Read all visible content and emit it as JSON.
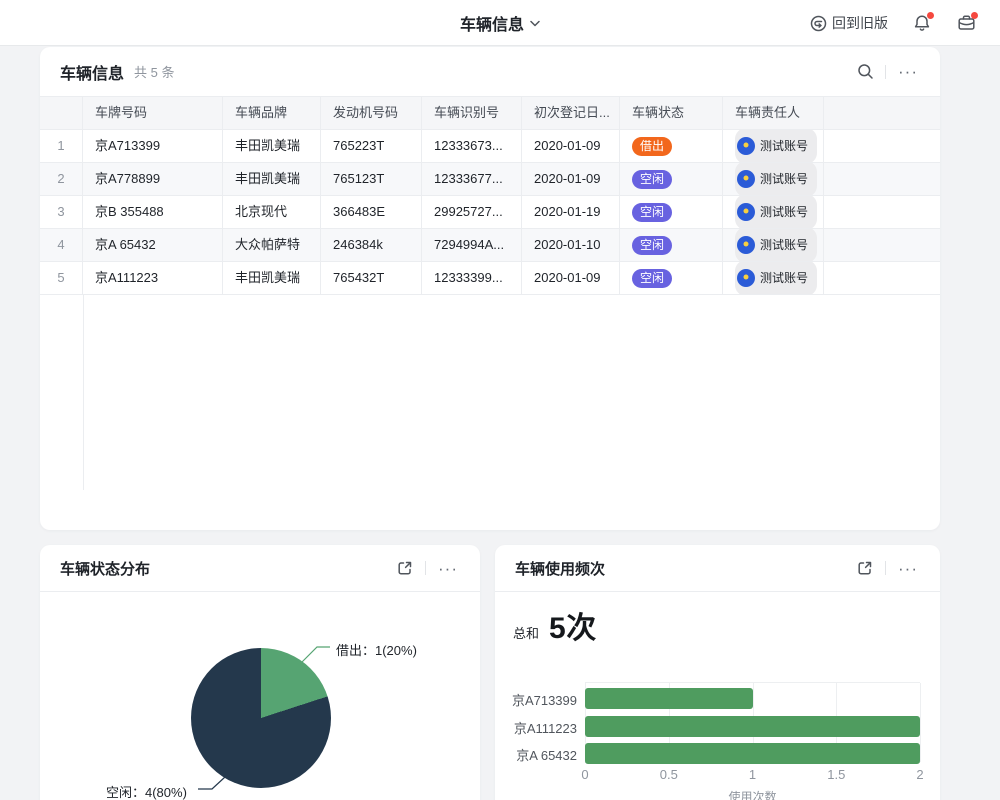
{
  "topbar": {
    "title": "车辆信息",
    "back_label": "回到旧版"
  },
  "icons": {
    "more": "···",
    "back": "circular-return-arrow",
    "notification": "bell",
    "workbench": "briefcase",
    "search": "magnifier",
    "export": "open-in-new-window",
    "title_chevron": "chevron-down"
  },
  "table_card": {
    "title": "车辆信息",
    "count": "共 5 条",
    "columns": [
      "车牌号码",
      "车辆品牌",
      "发动机号码",
      "车辆识别号",
      "初次登记日...",
      "车辆状态",
      "车辆责任人"
    ],
    "rows": [
      {
        "num": "1",
        "plate": "京A713399",
        "brand": "丰田凯美瑞",
        "engine": "765223T",
        "vin": "12333673...",
        "reg_date": "2020-01-09",
        "status": "借出",
        "owner": "测试账号"
      },
      {
        "num": "2",
        "plate": "京A778899",
        "brand": "丰田凯美瑞",
        "engine": "765123T",
        "vin": "12333677...",
        "reg_date": "2020-01-09",
        "status": "空闲",
        "owner": "测试账号"
      },
      {
        "num": "3",
        "plate": "京B 355488",
        "brand": "北京现代",
        "engine": "366483E",
        "vin": "29925727...",
        "reg_date": "2020-01-19",
        "status": "空闲",
        "owner": "测试账号"
      },
      {
        "num": "4",
        "plate": "京A 65432",
        "brand": "大众帕萨特",
        "engine": "246384k",
        "vin": "7294994A...",
        "reg_date": "2020-01-10",
        "status": "空闲",
        "owner": "测试账号"
      },
      {
        "num": "5",
        "plate": "京A111223",
        "brand": "丰田凯美瑞",
        "engine": "765432T",
        "vin": "12333399...",
        "reg_date": "2020-01-09",
        "status": "空闲",
        "owner": "测试账号"
      }
    ]
  },
  "status_colors": {
    "借出": "#f2671c",
    "空闲": "#6862e0"
  },
  "pie_card": {
    "title": "车辆状态分布",
    "label_lent": "借出：1(20%)",
    "label_idle": "空闲：4(80%)"
  },
  "bar_card": {
    "title": "车辆使用频次",
    "total_label": "总和",
    "total_value": "5次",
    "ticks": [
      "0",
      "0.5",
      "1",
      "1.5",
      "2"
    ],
    "xlabel": "使用次数"
  },
  "chart_data": [
    {
      "type": "pie",
      "title": "车辆状态分布",
      "slices": [
        {
          "label": "借出",
          "value": 1,
          "pct": 20,
          "color": "#56a472"
        },
        {
          "label": "空闲",
          "value": 4,
          "pct": 80,
          "color": "#24384c"
        }
      ],
      "annotations": [
        "借出：1(20%)",
        "空闲：4(80%)"
      ],
      "legend_position": "none"
    },
    {
      "type": "bar",
      "orientation": "horizontal",
      "title": "车辆使用频次",
      "total": 5,
      "total_text": "5次",
      "categories": [
        "京A713399",
        "京A111223",
        "京A 65432"
      ],
      "values": [
        1,
        2,
        2
      ],
      "xlabel": "使用次数",
      "ylabel": "",
      "xlim": [
        0,
        2
      ],
      "xticks": [
        0,
        0.5,
        1,
        1.5,
        2
      ],
      "bar_color": "#4f9c5f",
      "grid": true
    }
  ]
}
